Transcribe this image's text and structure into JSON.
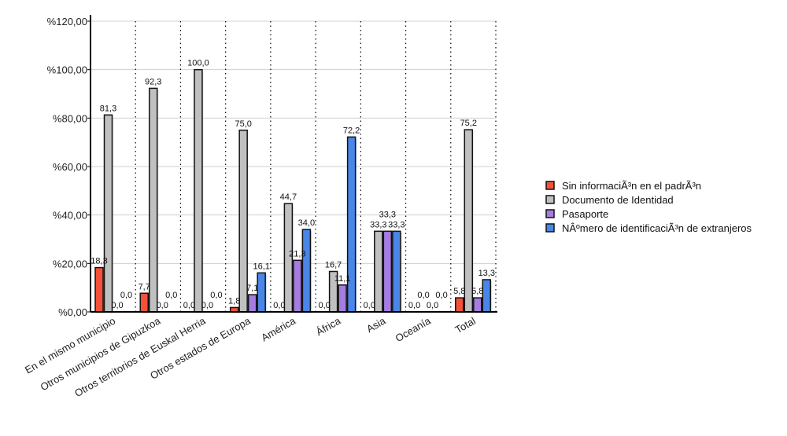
{
  "chart_data": {
    "type": "bar",
    "title": "",
    "xlabel": "",
    "ylabel": "",
    "ylim": [
      0,
      120
    ],
    "yticks": [
      0,
      20,
      40,
      60,
      80,
      100,
      120
    ],
    "ytick_labels": [
      "%0,00",
      "%20,00",
      "%40,00",
      "%60,00",
      "%80,00",
      "%100,00",
      "%120,00"
    ],
    "grid": true,
    "legend_position": "right",
    "categories": [
      "En el mismo municipio",
      "Otros municipios de Gipuzkoa",
      "Otros territorios de Euskal Herria",
      "Otros estados de Europa",
      "América",
      "África",
      "Asia",
      "Oceanía",
      "Total"
    ],
    "series": [
      {
        "name": "Sin informaciÃ³n en el padrÃ³n",
        "color": "#f4513a",
        "values": [
          18.3,
          7.7,
          0.0,
          1.8,
          0.0,
          0.0,
          0.0,
          0.0,
          5.8
        ]
      },
      {
        "name": "Documento de Identidad",
        "color": "#c0c0c0",
        "values": [
          81.3,
          92.3,
          100.0,
          75.0,
          44.7,
          16.7,
          33.3,
          0.0,
          75.2
        ]
      },
      {
        "name": "Pasaporte",
        "color": "#a57de0",
        "values": [
          0.0,
          0.0,
          0.0,
          7.1,
          21.3,
          11.1,
          33.3,
          0.0,
          5.8
        ]
      },
      {
        "name": "NÂºmero de identificaciÃ³n de extranjeros",
        "color": "#4a86e8",
        "values": [
          0.0,
          0.0,
          0.0,
          16.1,
          34.0,
          72.2,
          33.3,
          0.0,
          13.3
        ]
      }
    ]
  }
}
